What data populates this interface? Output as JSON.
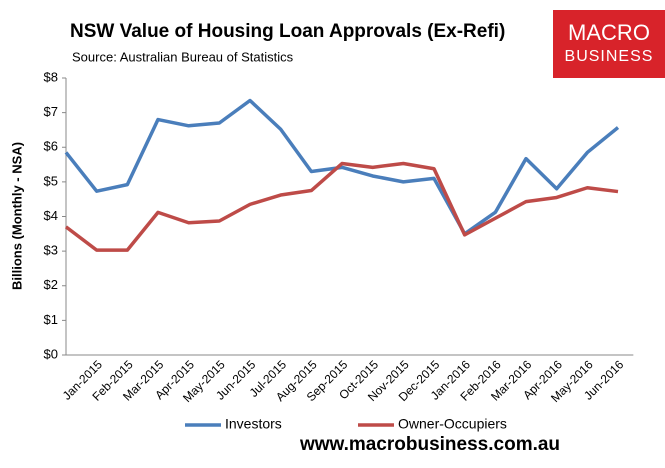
{
  "chart_data": {
    "type": "line",
    "title": "NSW Value of Housing Loan Approvals (Ex-Refi)",
    "subtitle": "Source: Australian Bureau of Statistics",
    "y_label": "Billions (Monthly - NSA)",
    "categories": [
      null,
      "Jan-2015",
      "Feb-2015",
      "Mar-2015",
      "Apr-2015",
      "May-2015",
      "Jun-2015",
      "Jul-2015",
      "Aug-2015",
      "Sep-2015",
      "Oct-2015",
      "Nov-2015",
      "Dec-2015",
      "Jan-2016",
      "Feb-2016",
      "Mar-2016",
      "Apr-2016",
      "May-2016",
      "Jun-2016"
    ],
    "series": [
      {
        "name": "Investors",
        "color": "#4a7ebb",
        "values": [
          5.85,
          4.73,
          4.92,
          6.8,
          6.62,
          6.7,
          7.35,
          6.52,
          5.3,
          5.42,
          5.17,
          5.0,
          5.1,
          3.5,
          4.12,
          5.67,
          4.8,
          5.85,
          6.57
        ]
      },
      {
        "name": "Owner-Occupiers",
        "color": "#be4b48",
        "values": [
          3.7,
          3.03,
          3.03,
          4.12,
          3.82,
          3.87,
          4.35,
          4.62,
          4.75,
          5.53,
          5.42,
          5.53,
          5.38,
          3.47,
          3.95,
          4.43,
          4.55,
          4.83,
          4.72
        ]
      }
    ],
    "ylim": [
      0,
      8
    ],
    "yticks": [
      {
        "value": 0,
        "label": "$0"
      },
      {
        "value": 1,
        "label": "$1"
      },
      {
        "value": 2,
        "label": "$2"
      },
      {
        "value": 3,
        "label": "$3"
      },
      {
        "value": 4,
        "label": "$4"
      },
      {
        "value": 5,
        "label": "$5"
      },
      {
        "value": 6,
        "label": "$6"
      },
      {
        "value": 7,
        "label": "$7"
      },
      {
        "value": 8,
        "label": "$8"
      }
    ],
    "grid": false,
    "legend": "bottom"
  },
  "logo": {
    "line1": "MACRO",
    "line2": "BUSINESS"
  },
  "footer": "www.macrobusiness.com.au"
}
